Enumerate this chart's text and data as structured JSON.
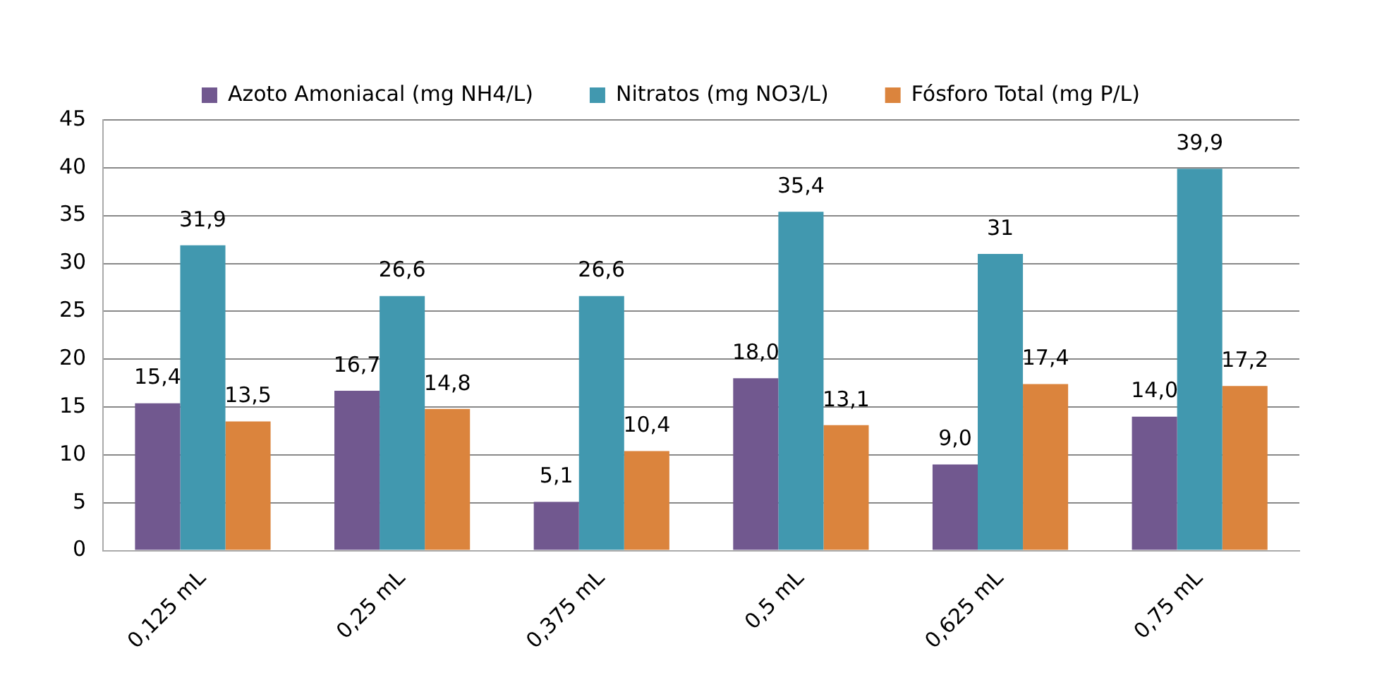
{
  "chart_data": {
    "type": "bar",
    "categories": [
      "0,125 mL",
      "0,25 mL",
      "0,375 mL",
      "0,5 mL",
      "0,625 mL",
      "0,75 mL"
    ],
    "series": [
      {
        "name": "Azoto Amoniacal (mg NH4/L)",
        "color": "#71588f",
        "values": [
          15.4,
          16.7,
          5.1,
          18.0,
          9.0,
          14.0
        ],
        "value_labels": [
          "15,4",
          "16,7",
          "5,1",
          "18,0",
          "9,0",
          "14,0"
        ]
      },
      {
        "name": "Nitratos (mg NO3/L)",
        "color": "#4198af",
        "values": [
          31.9,
          26.6,
          26.6,
          35.4,
          31,
          39.9
        ],
        "value_labels": [
          "31,9",
          "26,6",
          "26,6",
          "35,4",
          "31",
          "39,9"
        ]
      },
      {
        "name": "Fósforo Total (mg P/L)",
        "color": "#db843d",
        "values": [
          13.5,
          14.8,
          10.4,
          13.1,
          17.4,
          17.2
        ],
        "value_labels": [
          "13,5",
          "14,8",
          "10,4",
          "13,1",
          "17,4",
          "17,2"
        ]
      }
    ],
    "ylim": [
      0,
      45
    ],
    "yticks": [
      0,
      5,
      10,
      15,
      20,
      25,
      30,
      35,
      40,
      45
    ],
    "grid": "y",
    "legend": "top"
  }
}
